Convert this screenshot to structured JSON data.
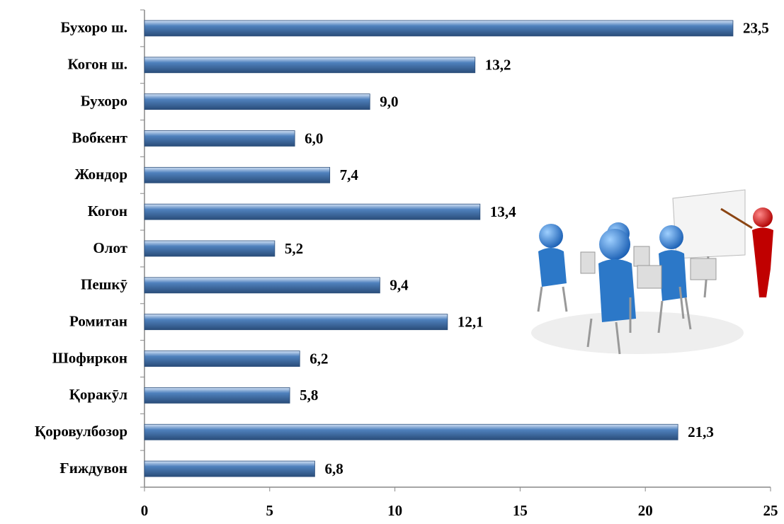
{
  "chart_data": {
    "type": "bar",
    "orientation": "horizontal",
    "categories": [
      "Бухоро ш.",
      "Когон ш.",
      "Бухоро",
      "Вобкент",
      "Жондор",
      "Когон",
      "Олот",
      "Пешкӯ",
      "Ромитан",
      "Шофиркон",
      "Қоракӯл",
      "Қоровулбозор",
      "Ғиждувон"
    ],
    "values": [
      23.5,
      13.2,
      9.0,
      6.0,
      7.4,
      13.4,
      5.2,
      9.4,
      12.1,
      6.2,
      5.8,
      21.3,
      6.8
    ],
    "value_labels": [
      "23,5",
      "13,2",
      "9,0",
      "6,0",
      "7,4",
      "13,4",
      "5,2",
      "9,4",
      "12,1",
      "6,2",
      "5,8",
      "21,3",
      "6,8"
    ],
    "color": "#4f81bd",
    "xlim": [
      0,
      25
    ],
    "xticks": [
      0,
      5,
      10,
      15,
      20,
      25
    ]
  }
}
